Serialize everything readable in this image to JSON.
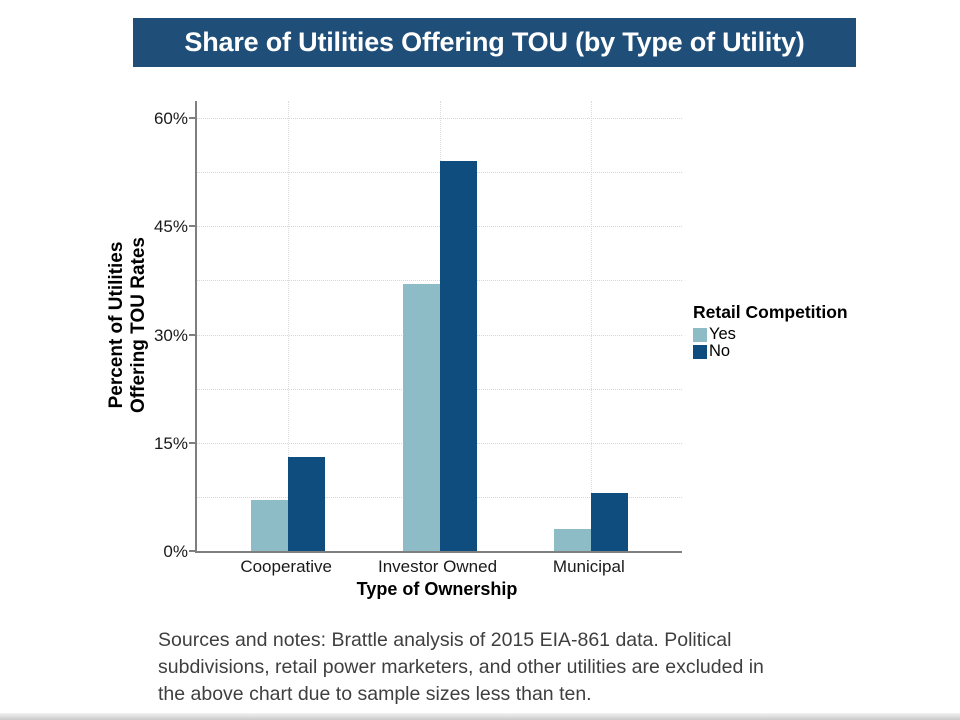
{
  "banner": {
    "title": "Share of Utilities Offering TOU (by Type of Utility)"
  },
  "chart_data": {
    "type": "bar",
    "title": "Share of Utilities Offering TOU (by Type of Utility)",
    "categories": [
      "Cooperative",
      "Investor Owned",
      "Municipal"
    ],
    "series": [
      {
        "name": "Yes",
        "color": "#8dbcc7",
        "values": [
          7,
          37,
          3
        ]
      },
      {
        "name": "No",
        "color": "#104d7f",
        "values": [
          13,
          54,
          8
        ]
      }
    ],
    "xlabel": "Type of Ownership",
    "ylabel_lines": [
      "Percent of Utilities",
      "Offering TOU Rates"
    ],
    "ylim": [
      0,
      60
    ],
    "yticks": [
      0,
      15,
      30,
      45,
      60
    ],
    "ytick_labels": [
      "0%",
      "15%",
      "30%",
      "45%",
      "60%"
    ],
    "minor_yticks": [
      7.5,
      22.5,
      37.5,
      52.5
    ],
    "grid": "dotted horizontal major and minor, dotted vertical at category centers",
    "legend": {
      "title": "Retail Competition",
      "position": "right",
      "entries": [
        "Yes",
        "No"
      ]
    }
  },
  "footer": {
    "lines": [
      "Sources and notes:  Brattle analysis of 2015 EIA-861 data. Political",
      "subdivisions, retail power marketers, and other utilities are excluded in",
      "the above chart due to sample sizes less than ten."
    ]
  },
  "colors": {
    "banner_bg": "#1f4e79",
    "banner_text": "#ffffff",
    "series_yes": "#8dbcc7",
    "series_no": "#104d7f",
    "axis": "#7f7f7f",
    "grid": "#d6d6d6",
    "footer_text": "#3f3f3f"
  }
}
